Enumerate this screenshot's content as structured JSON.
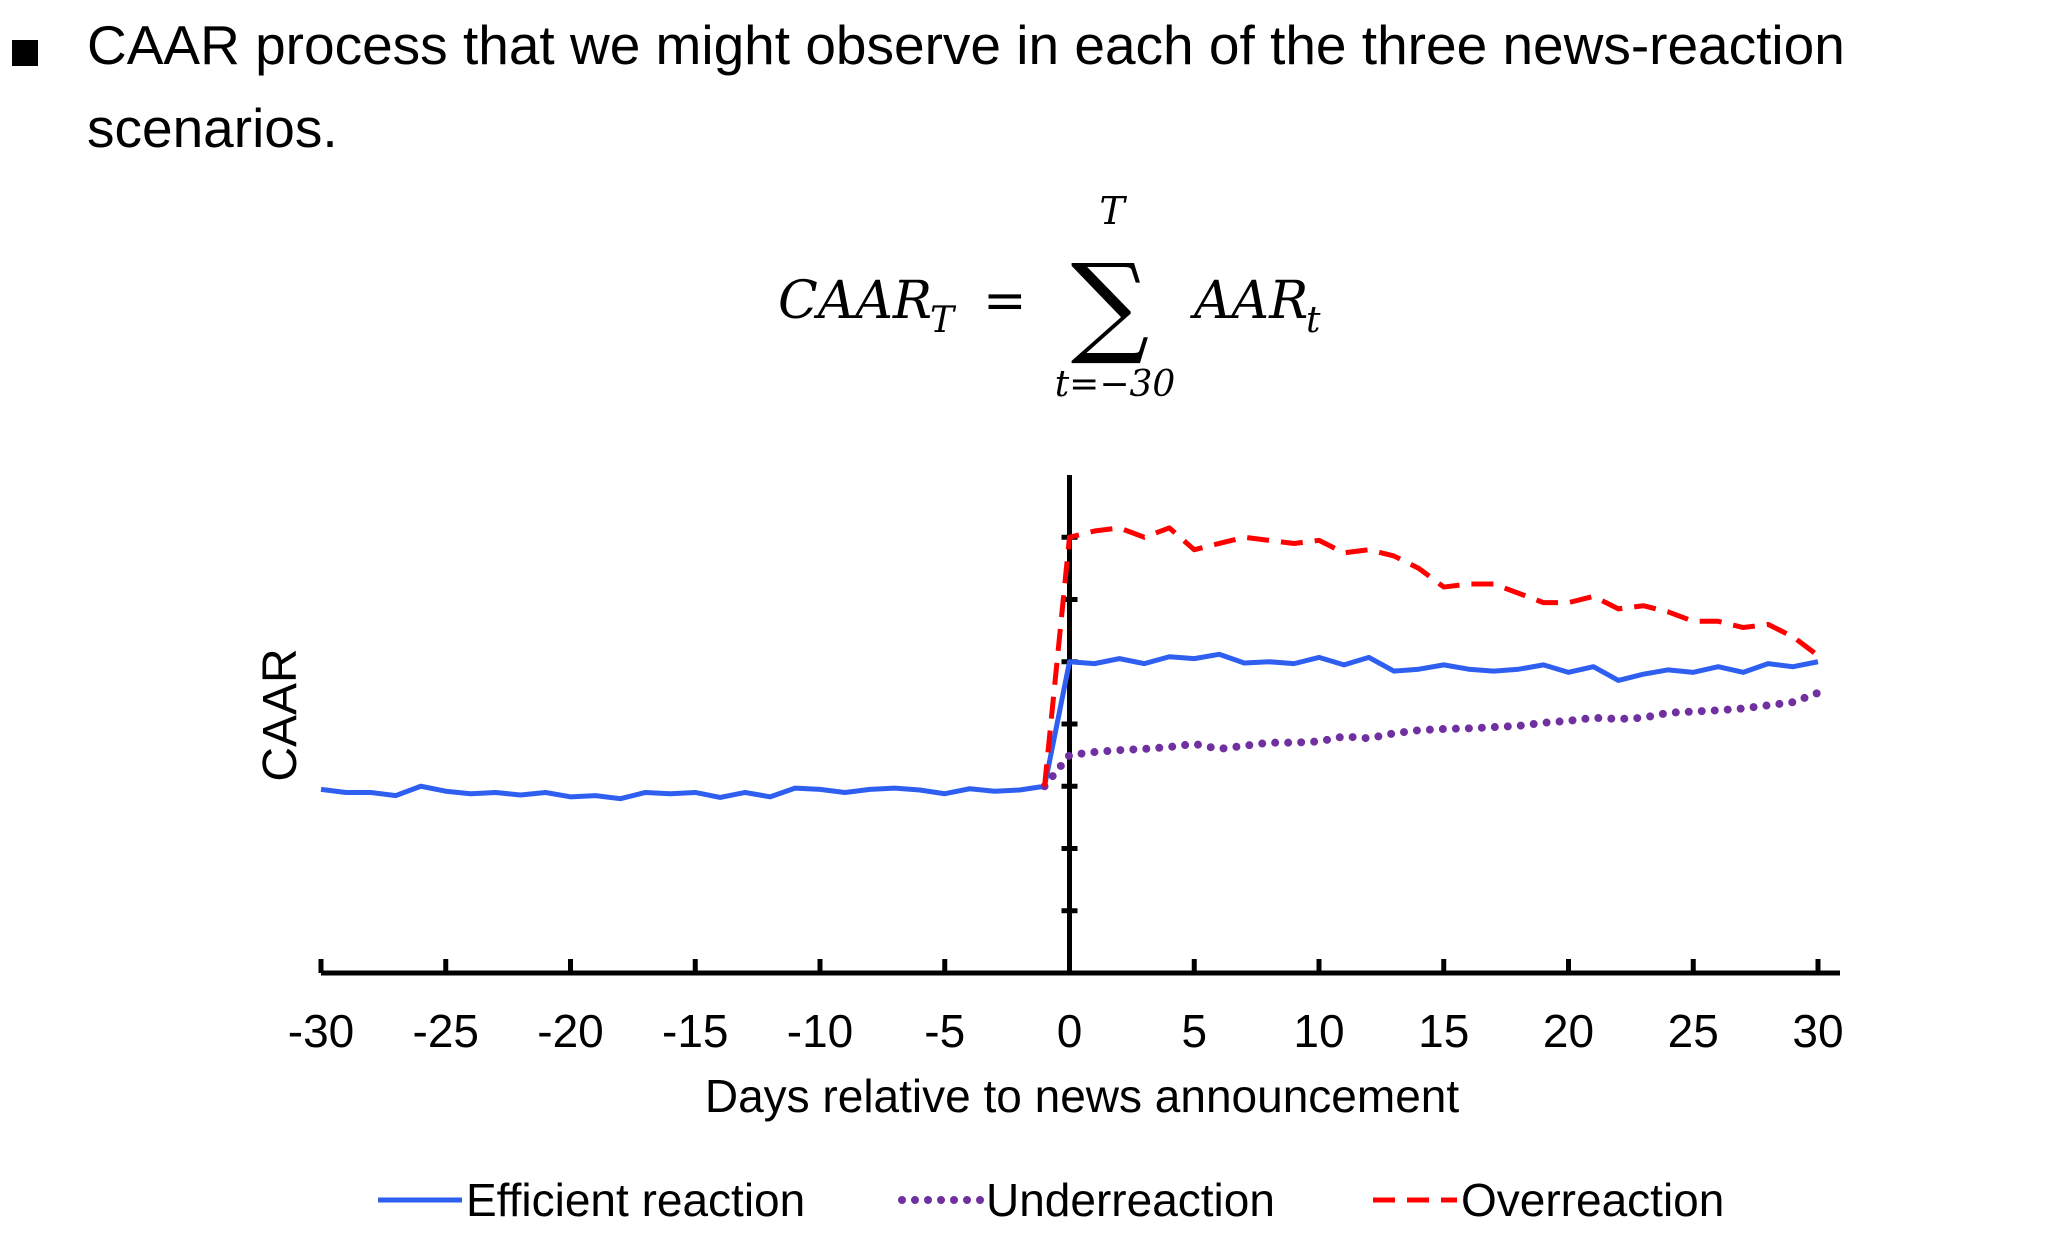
{
  "bullet": {
    "text_line_1": "CAAR process that we might observe in each of the three news-reaction",
    "text_line_2": "scenarios."
  },
  "formula": {
    "lhs": "CAAR",
    "lhs_sub": "T",
    "equals": "=",
    "sum": "∑",
    "upper": "T",
    "lower": "t=−30",
    "term": "AAR",
    "term_sub": "t"
  },
  "chart_data": {
    "type": "line",
    "xlabel": "Days relative to news announcement",
    "ylabel": "CAAR",
    "x": [
      -30,
      -29,
      -28,
      -27,
      -26,
      -25,
      -24,
      -23,
      -22,
      -21,
      -20,
      -19,
      -18,
      -17,
      -16,
      -15,
      -14,
      -13,
      -12,
      -11,
      -10,
      -9,
      -8,
      -7,
      -6,
      -5,
      -4,
      -3,
      -2,
      -1,
      0,
      1,
      2,
      3,
      4,
      5,
      6,
      7,
      8,
      9,
      10,
      11,
      12,
      13,
      14,
      15,
      16,
      17,
      18,
      19,
      20,
      21,
      22,
      23,
      24,
      25,
      26,
      27,
      28,
      29,
      30
    ],
    "xlim": [
      -30,
      30
    ],
    "xticks": [
      -30,
      -25,
      -20,
      -15,
      -10,
      -5,
      0,
      5,
      10,
      15,
      20,
      25,
      30
    ],
    "ylim": [
      0,
      8
    ],
    "yticks": [
      1,
      2,
      3,
      4,
      5,
      6,
      7
    ],
    "series": [
      {
        "name": "Efficient reaction",
        "color": "#2f5ff0",
        "dash": "solid",
        "values": [
          2.95,
          2.9,
          2.9,
          2.85,
          3.0,
          2.92,
          2.88,
          2.9,
          2.86,
          2.9,
          2.83,
          2.85,
          2.8,
          2.9,
          2.88,
          2.9,
          2.82,
          2.9,
          2.83,
          2.97,
          2.95,
          2.9,
          2.95,
          2.97,
          2.94,
          2.88,
          2.96,
          2.92,
          2.94,
          3.0,
          5.0,
          4.97,
          5.05,
          4.97,
          5.08,
          5.05,
          5.12,
          4.98,
          5.0,
          4.97,
          5.07,
          4.95,
          5.07,
          4.85,
          4.88,
          4.95,
          4.88,
          4.85,
          4.88,
          4.95,
          4.83,
          4.92,
          4.7,
          4.8,
          4.87,
          4.83,
          4.92,
          4.83,
          4.97,
          4.92,
          5.0
        ]
      },
      {
        "name": "Underreaction",
        "color": "#7030a0",
        "dash": "dotted",
        "values": [
          null,
          null,
          null,
          null,
          null,
          null,
          null,
          null,
          null,
          null,
          null,
          null,
          null,
          null,
          null,
          null,
          null,
          null,
          null,
          null,
          null,
          null,
          null,
          null,
          null,
          null,
          null,
          null,
          null,
          3.0,
          3.5,
          3.55,
          3.58,
          3.6,
          3.63,
          3.68,
          3.6,
          3.65,
          3.7,
          3.7,
          3.72,
          3.8,
          3.77,
          3.85,
          3.9,
          3.92,
          3.93,
          3.95,
          3.97,
          4.02,
          4.05,
          4.1,
          4.08,
          4.1,
          4.18,
          4.2,
          4.22,
          4.25,
          4.3,
          4.35,
          4.5
        ]
      },
      {
        "name": "Overreaction",
        "color": "#ff0000",
        "dash": "dashed",
        "values": [
          null,
          null,
          null,
          null,
          null,
          null,
          null,
          null,
          null,
          null,
          null,
          null,
          null,
          null,
          null,
          null,
          null,
          null,
          null,
          null,
          null,
          null,
          null,
          null,
          null,
          null,
          null,
          null,
          null,
          3.0,
          7.0,
          7.1,
          7.15,
          7.0,
          7.15,
          6.8,
          6.9,
          7.0,
          6.95,
          6.9,
          6.95,
          6.75,
          6.8,
          6.7,
          6.5,
          6.2,
          6.25,
          6.25,
          6.1,
          5.95,
          5.95,
          6.05,
          5.85,
          5.9,
          5.8,
          5.65,
          5.65,
          5.55,
          5.6,
          5.4,
          5.1
        ]
      }
    ]
  }
}
